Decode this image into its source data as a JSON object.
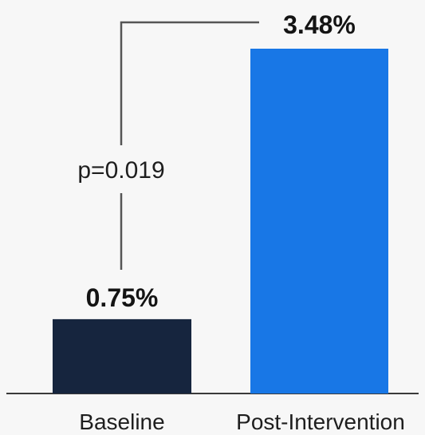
{
  "chart_data": {
    "type": "bar",
    "categories": [
      "Baseline",
      "Post-Intervention"
    ],
    "values": [
      0.75,
      3.48
    ],
    "data_labels": [
      "0.75%",
      "3.48%"
    ],
    "colors": [
      "#16253e",
      "#1877e6"
    ],
    "title": "",
    "xlabel": "",
    "ylabel": "",
    "ylim": [
      0,
      3.48
    ],
    "grid": false,
    "legend": "none",
    "annotation": {
      "text": "p=0.019",
      "between": [
        "Baseline",
        "Post-Intervention"
      ]
    }
  }
}
